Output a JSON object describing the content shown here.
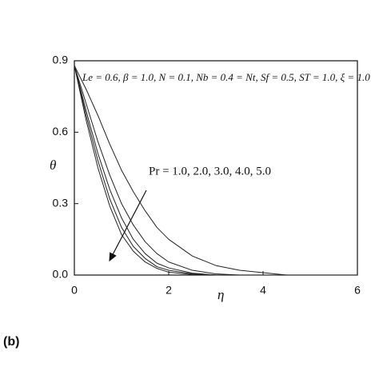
{
  "chart_data": {
    "type": "line",
    "annotation": "Le = 0.6, β = 1.0, N = 0.1, Nb = 0.4 = Nt, Sf = 0.5, ST = 1.0, ξ = 1.0",
    "arrow_label": "Pr = 1.0, 2.0, 3.0, 4.0, 5.0",
    "panel_label": "(b)",
    "x_label": "η",
    "y_label": "θ",
    "x": [
      0,
      0.25,
      0.5,
      0.75,
      1,
      1.25,
      1.5,
      1.75,
      2,
      2.5,
      3,
      3.5,
      4,
      4.5,
      5,
      6
    ],
    "series": [
      {
        "color": "#222",
        "values": [
          0.88,
          0.78,
          0.67,
          0.55,
          0.44,
          0.35,
          0.27,
          0.2,
          0.15,
          0.08,
          0.04,
          0.02,
          0.01,
          0,
          0,
          0
        ]
      },
      {
        "color": "#222",
        "values": [
          0.88,
          0.72,
          0.56,
          0.42,
          0.3,
          0.21,
          0.14,
          0.09,
          0.055,
          0.02,
          0.005,
          0,
          0,
          0,
          0,
          0
        ]
      },
      {
        "color": "#222",
        "values": [
          0.88,
          0.69,
          0.51,
          0.36,
          0.24,
          0.15,
          0.09,
          0.05,
          0.03,
          0.008,
          0,
          0,
          0,
          0,
          0,
          0
        ]
      },
      {
        "color": "#222",
        "values": [
          0.88,
          0.67,
          0.48,
          0.32,
          0.2,
          0.12,
          0.07,
          0.035,
          0.02,
          0.005,
          0,
          0,
          0,
          0,
          0,
          0
        ]
      },
      {
        "color": "#222",
        "values": [
          0.88,
          0.65,
          0.45,
          0.29,
          0.17,
          0.1,
          0.055,
          0.028,
          0.012,
          0.002,
          0,
          0,
          0,
          0,
          0,
          0
        ]
      }
    ],
    "xlim": [
      0,
      6
    ],
    "xticks": [
      0,
      2,
      4,
      6
    ],
    "ylim": [
      0,
      0.9
    ],
    "yticks": [
      {
        "value": 0,
        "label": "0.0"
      },
      0.3,
      0.6,
      0.9
    ]
  }
}
